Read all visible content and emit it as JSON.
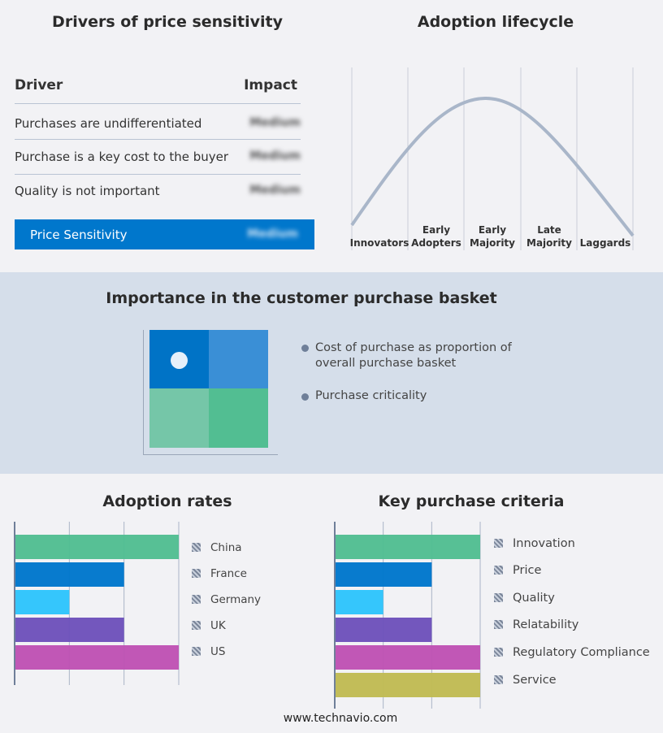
{
  "drivers": {
    "title": "Drivers of price sensitivity",
    "col_driver": "Driver",
    "col_impact": "Impact",
    "rows": [
      {
        "driver": "Purchases are undifferentiated",
        "impact": "Medium"
      },
      {
        "driver": "Purchase is a key cost to the buyer",
        "impact": "Medium"
      },
      {
        "driver": "Quality is not important",
        "impact": "Medium"
      }
    ],
    "summary": {
      "label": "Price Sensitivity",
      "impact": "Medium"
    }
  },
  "lifecycle": {
    "title": "Adoption lifecycle",
    "stages": [
      [
        "Innovators"
      ],
      [
        "Early",
        "Adopters"
      ],
      [
        "Early",
        "Majority"
      ],
      [
        "Late",
        "Majority"
      ],
      [
        "Laggards"
      ]
    ]
  },
  "basket": {
    "title": "Importance in the customer purchase basket",
    "legend": [
      "Cost of purchase as proportion of overall purchase basket",
      "Purchase criticality"
    ],
    "colors": [
      "#0073c6",
      "#3a8fd6",
      "#75c6a8",
      "#52be92"
    ]
  },
  "chart_data": [
    {
      "type": "bar",
      "orientation": "horizontal",
      "title": "Adoption rates",
      "categories": [
        "China",
        "France",
        "Germany",
        "UK",
        "US"
      ],
      "values": [
        3,
        2,
        1,
        2,
        3
      ],
      "colors": [
        "#52be92",
        "#0077cc",
        "#2ec4fc",
        "#6e52bb",
        "#bf52b4"
      ],
      "xlim": [
        0,
        3
      ],
      "grid": true,
      "legend": "right"
    },
    {
      "type": "bar",
      "orientation": "horizontal",
      "title": "Key purchase criteria",
      "categories": [
        "Innovation",
        "Price",
        "Quality",
        "Relatability",
        "Regulatory Compliance",
        "Service"
      ],
      "values": [
        3,
        2,
        1,
        2,
        3,
        3
      ],
      "colors": [
        "#52be92",
        "#0077cc",
        "#2ec4fc",
        "#6e52bb",
        "#bf52b4",
        "#c0bb54"
      ],
      "xlim": [
        0,
        3
      ],
      "grid": true,
      "legend": "right"
    }
  ],
  "footer": "www.technavio.com"
}
